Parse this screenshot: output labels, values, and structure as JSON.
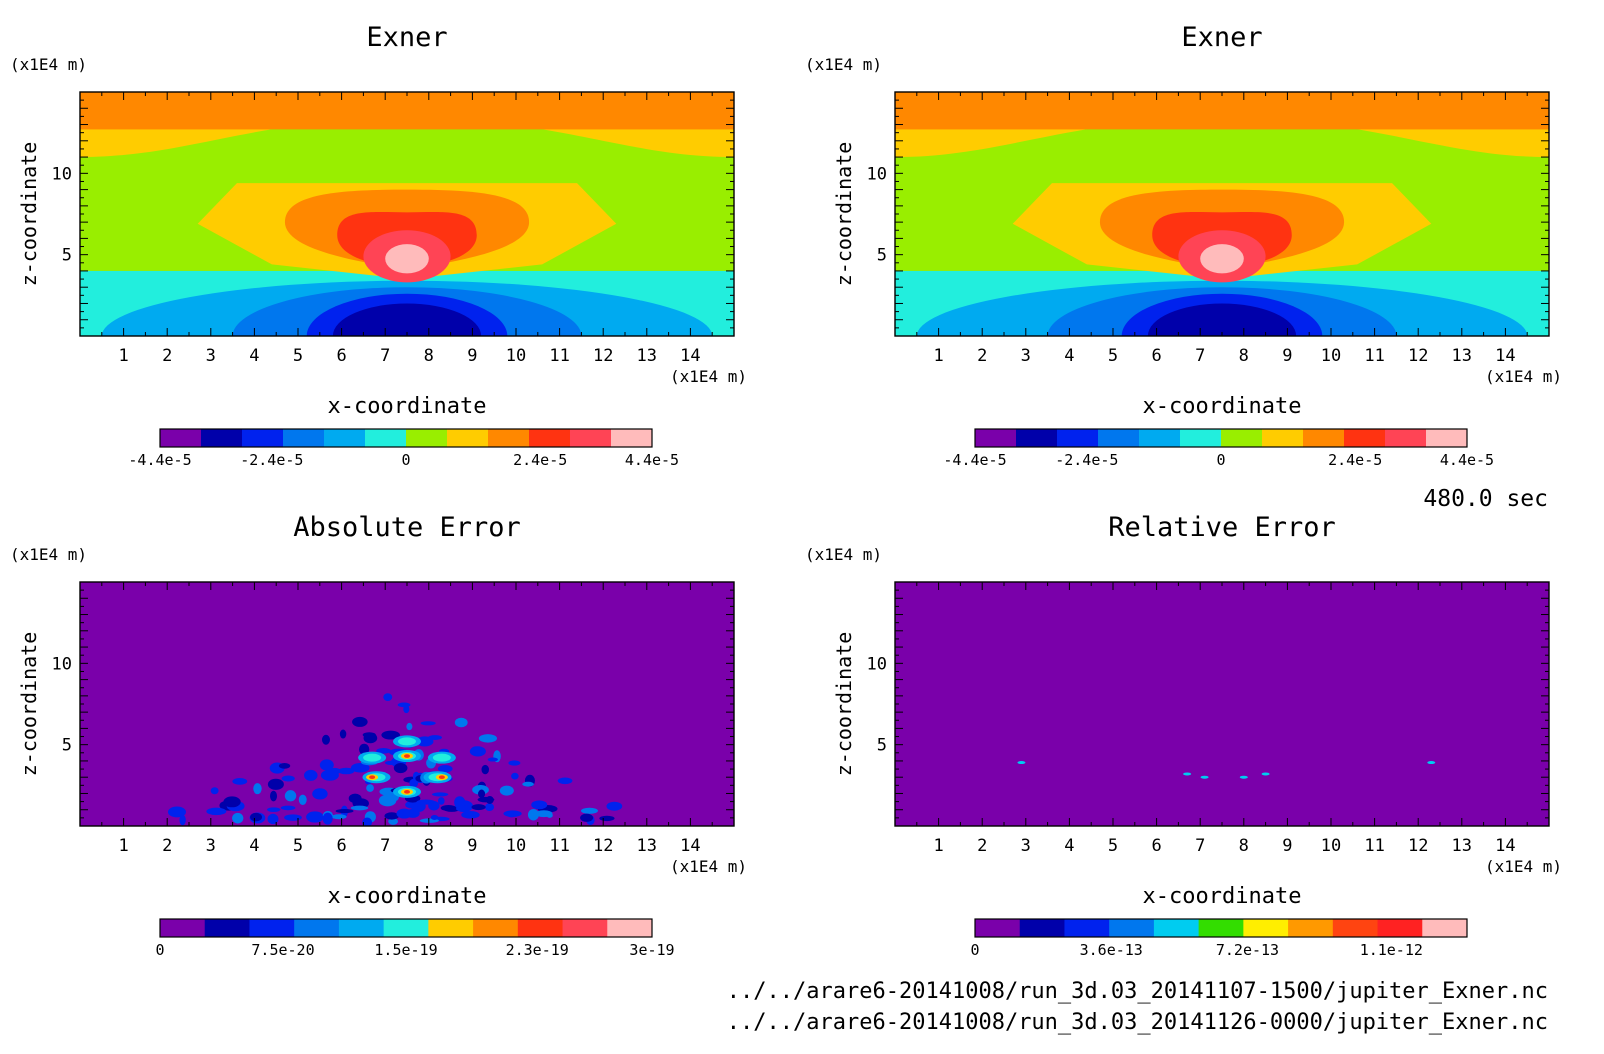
{
  "figure": {
    "time_label": "480.0 sec",
    "file_paths": [
      "../../arare6-20141008/run_3d.03_20141107-1500/jupiter_Exner.nc",
      "../../arare6-20141008/run_3d.03_20141126-0000/jupiter_Exner.nc"
    ]
  },
  "colors": {
    "exner_palette": [
      "#7a00aa",
      "#0000aa",
      "#0022ee",
      "#0077ee",
      "#00aaf0",
      "#22eedd",
      "#99ee00",
      "#ffcc00",
      "#ff8800",
      "#ff3311",
      "#ff4455",
      "#ffbbbb"
    ],
    "abs_error_palette": [
      "#7a00aa",
      "#0000aa",
      "#0022ee",
      "#0077ee",
      "#00aaf0",
      "#22eedd",
      "#ffcc00",
      "#ff8800",
      "#ff3311",
      "#ff4455",
      "#ffbbbb"
    ],
    "rel_error_palette": [
      "#7a00aa",
      "#0000aa",
      "#0022ee",
      "#0077ee",
      "#00ccf0",
      "#33dd00",
      "#ffee00",
      "#ff9900",
      "#ff4411",
      "#ff2222",
      "#ffbbbb"
    ]
  },
  "chart_data": [
    {
      "type": "heatmap",
      "title": "Exner",
      "xlabel": "x-coordinate",
      "ylabel": "z-coordinate",
      "x_unit": "(x1E4 m)",
      "y_unit": "(x1E4 m)",
      "xlim": [
        0,
        15
      ],
      "ylim": [
        0,
        15
      ],
      "x_ticks": [
        1,
        2,
        3,
        4,
        5,
        6,
        7,
        8,
        9,
        10,
        11,
        12,
        13,
        14
      ],
      "y_ticks": [
        5,
        10
      ],
      "colorbar_ticks": [
        "-4.4e-5",
        "-2.4e-5",
        "0",
        "2.4e-5",
        "4.4e-5"
      ],
      "colorbar_range": [
        -4.4e-05,
        4.4e-05
      ],
      "field": "exner"
    },
    {
      "type": "heatmap",
      "title": "Exner",
      "xlabel": "x-coordinate",
      "ylabel": "z-coordinate",
      "x_unit": "(x1E4 m)",
      "y_unit": "(x1E4 m)",
      "xlim": [
        0,
        15
      ],
      "ylim": [
        0,
        15
      ],
      "x_ticks": [
        1,
        2,
        3,
        4,
        5,
        6,
        7,
        8,
        9,
        10,
        11,
        12,
        13,
        14
      ],
      "y_ticks": [
        5,
        10
      ],
      "colorbar_ticks": [
        "-4.4e-5",
        "-2.4e-5",
        "0",
        "2.4e-5",
        "4.4e-5"
      ],
      "colorbar_range": [
        -4.4e-05,
        4.4e-05
      ],
      "field": "exner"
    },
    {
      "type": "heatmap",
      "title": "Absolute Error",
      "xlabel": "x-coordinate",
      "ylabel": "z-coordinate",
      "x_unit": "(x1E4 m)",
      "y_unit": "(x1E4 m)",
      "xlim": [
        0,
        15
      ],
      "ylim": [
        0,
        15
      ],
      "x_ticks": [
        1,
        2,
        3,
        4,
        5,
        6,
        7,
        8,
        9,
        10,
        11,
        12,
        13,
        14
      ],
      "y_ticks": [
        5,
        10
      ],
      "colorbar_ticks": [
        "0",
        "7.5e-20",
        "1.5e-19",
        "2.3e-19",
        "3e-19"
      ],
      "colorbar_range": [
        0,
        3e-19
      ],
      "field": "abs_error"
    },
    {
      "type": "heatmap",
      "title": "Relative Error",
      "xlabel": "x-coordinate",
      "ylabel": "z-coordinate",
      "x_unit": "(x1E4 m)",
      "y_unit": "(x1E4 m)",
      "xlim": [
        0,
        15
      ],
      "ylim": [
        0,
        15
      ],
      "x_ticks": [
        1,
        2,
        3,
        4,
        5,
        6,
        7,
        8,
        9,
        10,
        11,
        12,
        13,
        14
      ],
      "y_ticks": [
        5,
        10
      ],
      "colorbar_ticks": [
        "0",
        "3.6e-13",
        "7.2e-13",
        "1.1e-12"
      ],
      "colorbar_range": [
        0,
        1.3e-12
      ],
      "field": "rel_error"
    }
  ]
}
